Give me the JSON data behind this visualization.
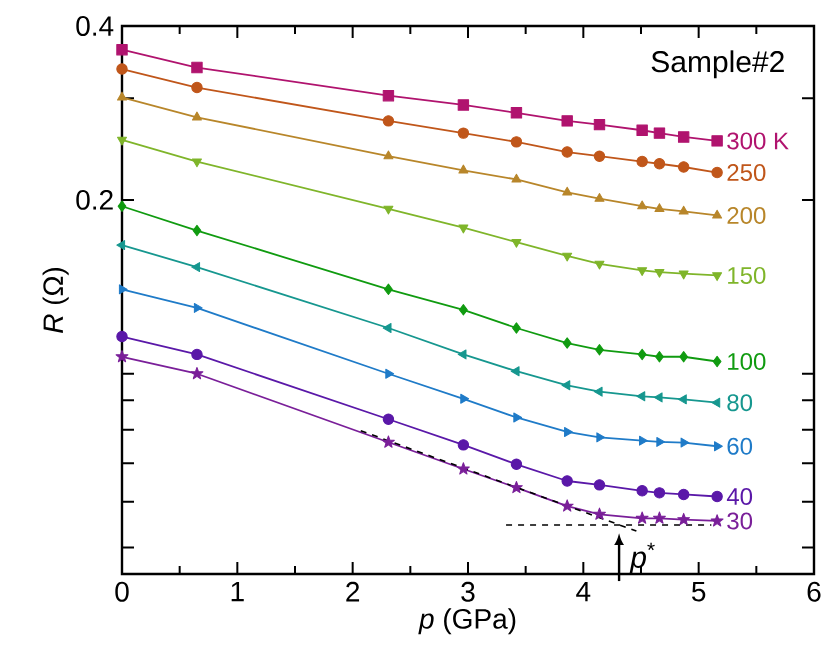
{
  "chart_data": {
    "type": "line",
    "xlabel": "*p* (GPa)",
    "ylabel": "*R* (Ω)",
    "log": "y",
    "xlim": [
      0,
      6
    ],
    "ylim": [
      0.045,
      0.4
    ],
    "xticks": [
      0,
      1,
      2,
      3,
      4,
      5,
      6
    ],
    "yticks": [
      {
        "value": 0.05,
        "label": null
      },
      {
        "value": 0.06,
        "label": null
      },
      {
        "value": 0.07,
        "label": null
      },
      {
        "value": 0.08,
        "label": null
      },
      {
        "value": 0.09,
        "label": null
      },
      {
        "value": 0.1,
        "label": null
      },
      0.2,
      {
        "value": 0.3,
        "label": null
      },
      0.4
    ],
    "x": [
      0,
      0.65,
      2.31,
      2.96,
      3.42,
      3.86,
      4.14,
      4.51,
      4.66,
      4.87,
      5.16
    ],
    "series": [
      {
        "name": "300 K",
        "color": "#b0136e",
        "marker": "square",
        "values": [
          0.364,
          0.339,
          0.303,
          0.292,
          0.283,
          0.274,
          0.27,
          0.264,
          0.261,
          0.257,
          0.253
        ]
      },
      {
        "name": "250",
        "color": "#c0561a",
        "marker": "circle",
        "values": [
          0.337,
          0.313,
          0.274,
          0.261,
          0.252,
          0.242,
          0.238,
          0.233,
          0.231,
          0.228,
          0.223
        ]
      },
      {
        "name": "200",
        "color": "#b8862a",
        "marker": "triangle",
        "values": [
          0.301,
          0.278,
          0.238,
          0.225,
          0.217,
          0.206,
          0.201,
          0.195,
          0.193,
          0.191,
          0.188
        ]
      },
      {
        "name": "150",
        "color": "#7fb52a",
        "marker": "triangle-down",
        "values": [
          0.254,
          0.233,
          0.193,
          0.179,
          0.169,
          0.16,
          0.155,
          0.151,
          0.15,
          0.149,
          0.148
        ]
      },
      {
        "name": "100",
        "color": "#109b10",
        "marker": "diamond",
        "values": [
          0.195,
          0.177,
          0.14,
          0.129,
          0.12,
          0.113,
          0.11,
          0.108,
          0.107,
          0.107,
          0.105
        ]
      },
      {
        "name": "80",
        "color": "#16978f",
        "marker": "triangle-left",
        "values": [
          0.167,
          0.153,
          0.12,
          0.108,
          0.101,
          0.0955,
          0.0931,
          0.0914,
          0.091,
          0.0903,
          0.0891
        ]
      },
      {
        "name": "60",
        "color": "#1f7bc8",
        "marker": "triangle-right",
        "values": [
          0.14,
          0.13,
          0.1,
          0.0905,
          0.084,
          0.0793,
          0.0776,
          0.0766,
          0.0762,
          0.076,
          0.0749
        ]
      },
      {
        "name": "40",
        "color": "#5a18a8",
        "marker": "circle",
        "values": [
          0.116,
          0.108,
          0.0834,
          0.0753,
          0.0697,
          0.0652,
          0.0642,
          0.0627,
          0.0622,
          0.0618,
          0.0613
        ]
      },
      {
        "name": "30",
        "color": "#7a1f99",
        "marker": "star",
        "values": [
          0.107,
          0.1,
          0.0761,
          0.0684,
          0.0635,
          0.059,
          0.0571,
          0.0562,
          0.0562,
          0.0559,
          0.0556
        ]
      },
      {
        "type": "line",
        "color": "#000000",
        "marker": "none",
        "line_style": "dashed",
        "x": [
          2.07,
          4.46
        ],
        "values": [
          0.0797,
          0.0534
        ]
      },
      {
        "type": "line",
        "color": "#000000",
        "marker": "none",
        "line_style": "dashed",
        "x": [
          3.33,
          5.11
        ],
        "values": [
          0.0547,
          0.0547
        ]
      }
    ],
    "annotations": [
      "Sample#2",
      {
        "text": "*p*$^{*}$",
        "x": 4.31,
        "y": 0.0547
      }
    ]
  }
}
